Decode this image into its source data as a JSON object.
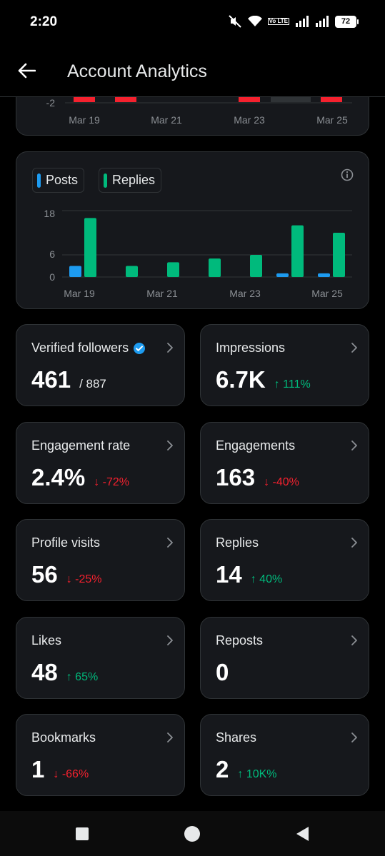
{
  "status_bar": {
    "time": "2:20",
    "battery": "72",
    "volte_label": "Vo LTE"
  },
  "header": {
    "title": "Account Analytics"
  },
  "top_chart": {
    "y_tick_label": "-2",
    "x_labels": [
      "Mar 19",
      "Mar 21",
      "Mar 23",
      "Mar 25"
    ]
  },
  "chart_data": {
    "type": "bar",
    "categories": [
      "Mar 19",
      "Mar 20",
      "Mar 21",
      "Mar 22",
      "Mar 23",
      "Mar 24",
      "Mar 25"
    ],
    "x_tick_labels": [
      "Mar 19",
      "Mar 21",
      "Mar 23",
      "Mar 25"
    ],
    "series": [
      {
        "name": "Posts",
        "values": [
          3,
          0,
          0,
          0,
          0,
          1,
          1
        ],
        "color": "#1d9bf0"
      },
      {
        "name": "Replies",
        "values": [
          16,
          3,
          4,
          5,
          6,
          14,
          12
        ],
        "color": "#00ba7c"
      }
    ],
    "y_ticks": [
      "18",
      "6",
      "0"
    ],
    "ylim": [
      0,
      18
    ],
    "legend_position": "top-left",
    "grid": true
  },
  "metrics": [
    {
      "label": "Verified followers",
      "value": "461",
      "total": "/ 887",
      "change": "",
      "direction": "",
      "verified": true
    },
    {
      "label": "Impressions",
      "value": "6.7K",
      "total": "",
      "change": "111%",
      "direction": "up",
      "verified": false
    },
    {
      "label": "Engagement rate",
      "value": "2.4%",
      "total": "",
      "change": "-72%",
      "direction": "down",
      "verified": false
    },
    {
      "label": "Engagements",
      "value": "163",
      "total": "",
      "change": "-40%",
      "direction": "down",
      "verified": false
    },
    {
      "label": "Profile visits",
      "value": "56",
      "total": "",
      "change": "-25%",
      "direction": "down",
      "verified": false
    },
    {
      "label": "Replies",
      "value": "14",
      "total": "",
      "change": "40%",
      "direction": "up",
      "verified": false
    },
    {
      "label": "Likes",
      "value": "48",
      "total": "",
      "change": "65%",
      "direction": "up",
      "verified": false
    },
    {
      "label": "Reposts",
      "value": "0",
      "total": "",
      "change": "",
      "direction": "",
      "verified": false
    },
    {
      "label": "Bookmarks",
      "value": "1",
      "total": "",
      "change": "-66%",
      "direction": "down",
      "verified": false
    },
    {
      "label": "Shares",
      "value": "2",
      "total": "",
      "change": "10K%",
      "direction": "up",
      "verified": false
    }
  ],
  "colors": {
    "up": "#00ba7c",
    "down": "#f4212e",
    "verified": "#1d9bf0"
  }
}
